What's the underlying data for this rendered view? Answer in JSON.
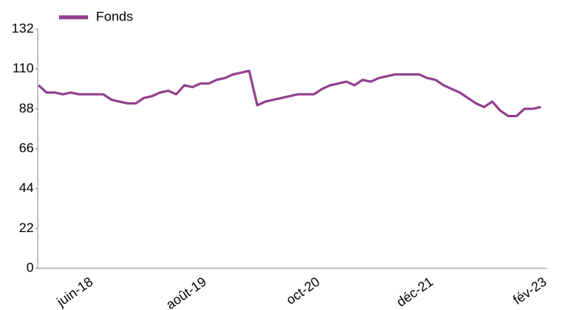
{
  "chart_data": {
    "type": "line",
    "categories": [
      null,
      null,
      null,
      null,
      null,
      null,
      "juin-18",
      null,
      null,
      null,
      null,
      null,
      null,
      null,
      null,
      null,
      null,
      null,
      null,
      null,
      "août-19",
      null,
      null,
      null,
      null,
      null,
      null,
      null,
      null,
      null,
      null,
      null,
      null,
      null,
      "oct-20",
      null,
      null,
      null,
      null,
      null,
      null,
      null,
      null,
      null,
      null,
      null,
      null,
      null,
      "déc-21",
      null,
      null,
      null,
      null,
      null,
      null,
      null,
      null,
      null,
      null,
      null,
      null,
      null,
      "fév-23"
    ],
    "series": [
      {
        "name": "Fonds",
        "color": "#923f8f",
        "values": [
          101,
          97,
          97,
          96,
          97,
          96,
          96,
          96,
          96,
          93,
          92,
          91,
          91,
          94,
          95,
          97,
          98,
          96,
          101,
          100,
          102,
          102,
          104,
          105,
          107,
          108,
          109,
          90,
          92,
          93,
          94,
          95,
          96,
          96,
          96,
          99,
          101,
          102,
          103,
          101,
          104,
          103,
          105,
          106,
          107,
          107,
          107,
          107,
          105,
          104,
          101,
          99,
          97,
          94,
          91,
          89,
          92,
          87,
          84,
          84,
          88,
          88,
          89
        ]
      }
    ],
    "ylim": [
      0,
      132
    ],
    "yticks": [
      0,
      22,
      44,
      66,
      88,
      110,
      132
    ]
  }
}
